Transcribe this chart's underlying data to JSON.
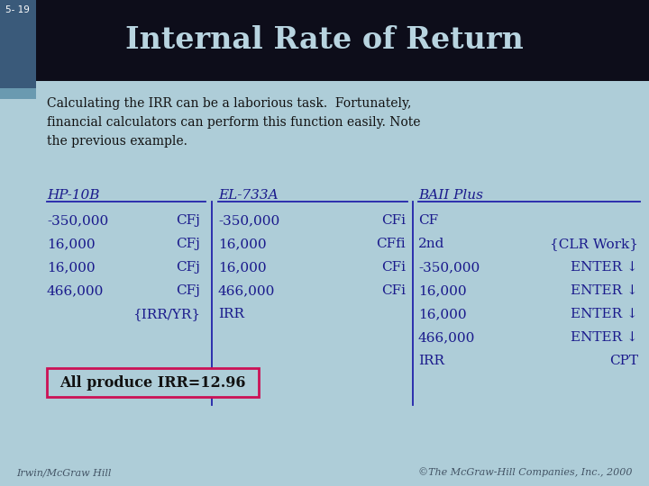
{
  "slide_number": "5- 19",
  "title": "Internal Rate of Return",
  "bg_color": "#aecdd8",
  "header_bg": "#0d0d1a",
  "title_color": "#b8d4e0",
  "slide_num_color": "#ffffff",
  "body_color": "#1a1a8c",
  "intro_line1": "Calculating the IRR can be a laborious task.  Fortunately,",
  "intro_line2": "financial calculators can perform this function easily. Note",
  "intro_line3": "the previous example.",
  "hp_header": "HP-10B",
  "el_header": "EL-733A",
  "baii_header": "BAII Plus",
  "hp_vals": [
    "-350,000",
    "16,000",
    "16,000",
    "466,000",
    ""
  ],
  "hp_keys": [
    "CFj",
    "CFj",
    "CFj",
    "CFj",
    "{IRR/YR}"
  ],
  "el_vals": [
    "-350,000",
    "16,000",
    "16,000",
    "466,000",
    "IRR"
  ],
  "el_keys": [
    "CFi",
    "CFfi",
    "CFi",
    "CFi",
    ""
  ],
  "baii_vals": [
    "CF",
    "2nd",
    "-350,000",
    "16,000",
    "16,000",
    "466,000",
    "IRR"
  ],
  "baii_keys": [
    "",
    "{CLR Work}",
    "ENTER ↓",
    "ENTER ↓",
    "ENTER ↓",
    "ENTER ↓",
    "CPT"
  ],
  "box_text": "All produce IRR=12.96",
  "footer_left": "Irwin/McGraw Hill",
  "footer_right": "©The McGraw-Hill Companies, Inc., 2000",
  "left_bar_color": "#3a5a7a",
  "divider_color": "#2222aa",
  "text_dark": "#111111"
}
